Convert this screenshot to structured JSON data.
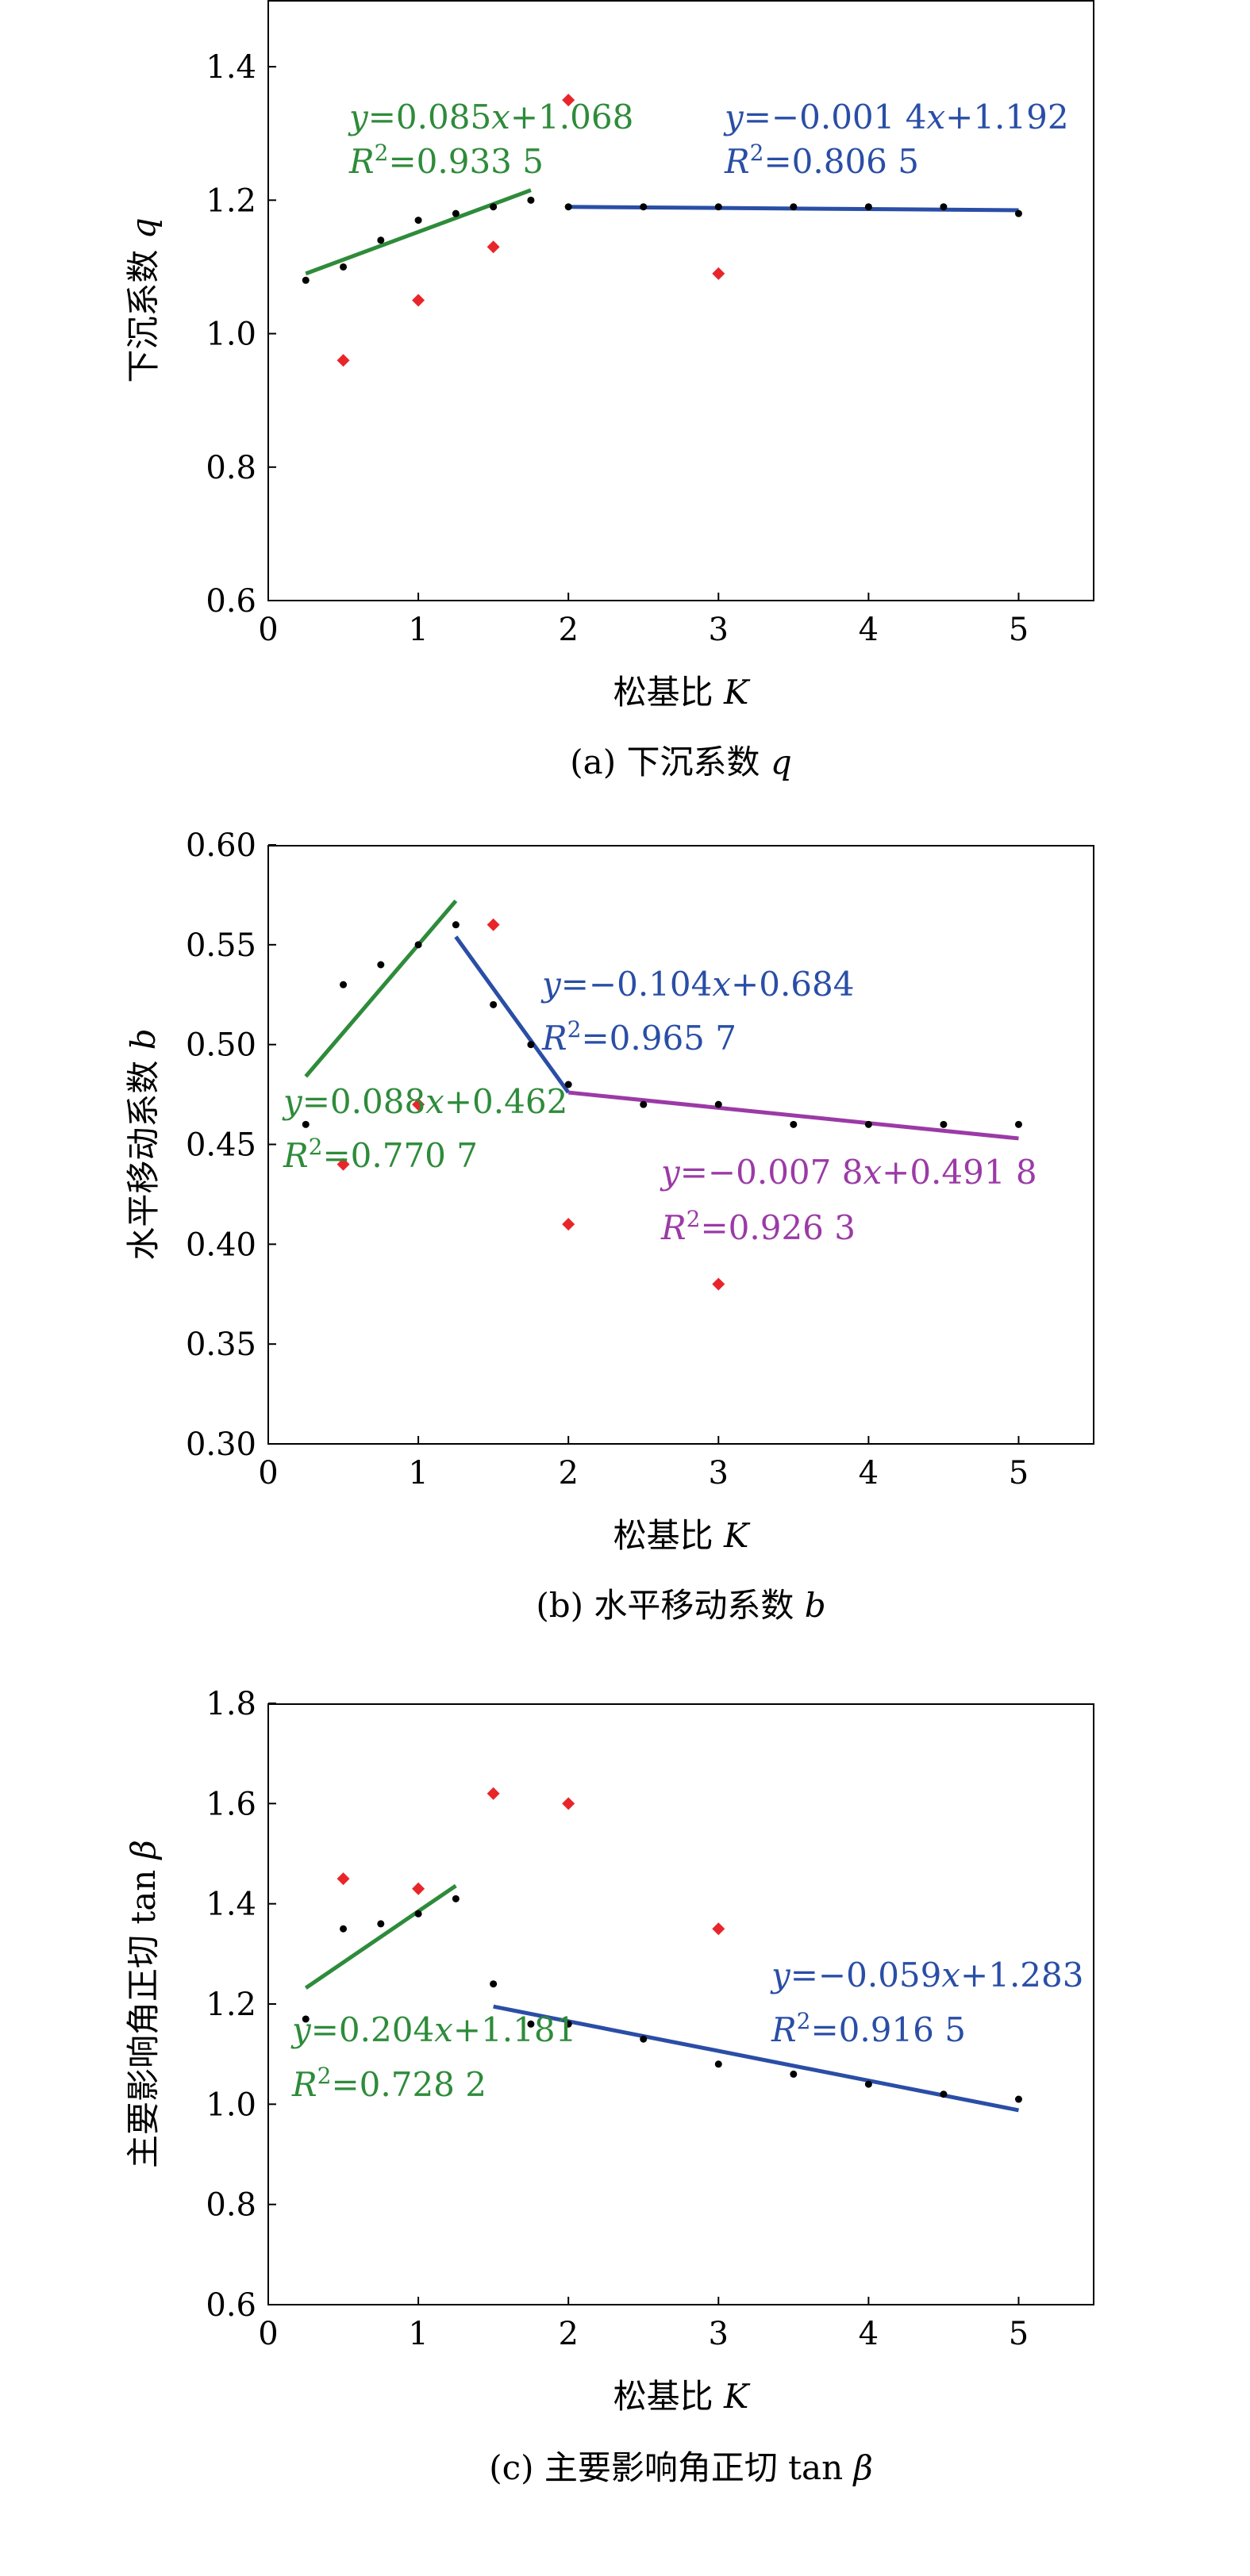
{
  "chart_data": [
    {
      "type": "scatter",
      "xlabel": "松基比",
      "xlabel_var": "K",
      "ylabel": "下沉系数",
      "ylabel_var": "q",
      "caption": "(a) 下沉系数",
      "caption_var": "q",
      "xlim": [
        0,
        5.5
      ],
      "ylim": [
        0.6,
        1.5
      ],
      "x_ticks": [
        0,
        1,
        2,
        3,
        4,
        5
      ],
      "y_ticks": [
        0.6,
        0.8,
        1.0,
        1.2,
        1.4
      ],
      "y_tick_labels": [
        "0.6",
        "0.8",
        "1.0",
        "1.2",
        "1.4"
      ],
      "series": [
        {
          "marker": "dot",
          "color": "#000000",
          "points": [
            [
              0.25,
              1.08
            ],
            [
              0.5,
              1.1
            ],
            [
              0.75,
              1.14
            ],
            [
              1.0,
              1.17
            ],
            [
              1.25,
              1.18
            ],
            [
              1.5,
              1.19
            ],
            [
              1.75,
              1.2
            ],
            [
              2.0,
              1.19
            ],
            [
              2.5,
              1.19
            ],
            [
              3.0,
              1.19
            ],
            [
              3.5,
              1.19
            ],
            [
              4.0,
              1.19
            ],
            [
              4.5,
              1.19
            ],
            [
              5.0,
              1.18
            ]
          ]
        },
        {
          "marker": "diamond",
          "color": "#e8262a",
          "points": [
            [
              0.5,
              0.96
            ],
            [
              1.0,
              1.05
            ],
            [
              1.5,
              1.13
            ],
            [
              2.0,
              1.35
            ],
            [
              3.0,
              1.09
            ]
          ]
        }
      ],
      "fits": [
        {
          "color": "#2e8b3a",
          "line": [
            [
              0.25,
              1.09
            ],
            [
              1.75,
              1.215
            ]
          ],
          "eq_y": "y",
          "eq_a": "=0.085",
          "eq_x": "x",
          "eq_b": "+1.068",
          "r2_r": "R",
          "r2_sup": "2",
          "r2_val": "=0.933 5"
        },
        {
          "color": "#2a4ea6",
          "line": [
            [
              2.0,
              1.19
            ],
            [
              5.0,
              1.185
            ]
          ],
          "eq_y": "y",
          "eq_a": "=−0.001 4",
          "eq_x": "x",
          "eq_b": "+1.192",
          "r2_r": "R",
          "r2_sup": "2",
          "r2_val": "=0.806 5"
        }
      ]
    },
    {
      "type": "scatter",
      "xlabel": "松基比",
      "xlabel_var": "K",
      "ylabel": "水平移动系数",
      "ylabel_var": "b",
      "caption": "(b) 水平移动系数",
      "caption_var": "b",
      "xlim": [
        0,
        5.5
      ],
      "ylim": [
        0.3,
        0.6
      ],
      "x_ticks": [
        0,
        1,
        2,
        3,
        4,
        5
      ],
      "y_ticks": [
        0.3,
        0.35,
        0.4,
        0.45,
        0.5,
        0.55,
        0.6
      ],
      "y_tick_labels": [
        "0.30",
        "0.35",
        "0.40",
        "0.45",
        "0.50",
        "0.55",
        "0.60"
      ],
      "series": [
        {
          "marker": "dot",
          "color": "#000000",
          "points": [
            [
              0.25,
              0.46
            ],
            [
              0.5,
              0.53
            ],
            [
              0.75,
              0.54
            ],
            [
              1.0,
              0.55
            ],
            [
              1.25,
              0.56
            ],
            [
              1.5,
              0.52
            ],
            [
              1.75,
              0.5
            ],
            [
              2.0,
              0.48
            ],
            [
              2.5,
              0.47
            ],
            [
              3.0,
              0.47
            ],
            [
              3.5,
              0.46
            ],
            [
              4.0,
              0.46
            ],
            [
              4.5,
              0.46
            ],
            [
              5.0,
              0.46
            ]
          ]
        },
        {
          "marker": "diamond",
          "color": "#e8262a",
          "points": [
            [
              0.5,
              0.44
            ],
            [
              1.0,
              0.47
            ],
            [
              1.5,
              0.56
            ],
            [
              2.0,
              0.41
            ],
            [
              3.0,
              0.38
            ]
          ]
        }
      ],
      "fits": [
        {
          "color": "#2e8b3a",
          "line": [
            [
              0.25,
              0.484
            ],
            [
              1.25,
              0.572
            ]
          ],
          "eq_y": "y",
          "eq_a": "=0.088",
          "eq_x": "x",
          "eq_b": "+0.462",
          "r2_r": "R",
          "r2_sup": "2",
          "r2_val": "=0.770 7"
        },
        {
          "color": "#2a4ea6",
          "line": [
            [
              1.25,
              0.554
            ],
            [
              2.0,
              0.476
            ]
          ],
          "eq_y": "y",
          "eq_a": "=−0.104",
          "eq_x": "x",
          "eq_b": "+0.684",
          "r2_r": "R",
          "r2_sup": "2",
          "r2_val": "=0.965 7"
        },
        {
          "color": "#9b3aa6",
          "line": [
            [
              2.0,
              0.476
            ],
            [
              5.0,
              0.453
            ]
          ],
          "eq_y": "y",
          "eq_a": "=−0.007 8",
          "eq_x": "x",
          "eq_b": "+0.491 8",
          "r2_r": "R",
          "r2_sup": "2",
          "r2_val": "=0.926 3"
        }
      ]
    },
    {
      "type": "scatter",
      "xlabel": "松基比",
      "xlabel_var": "K",
      "ylabel": "主要影响角正切 tan",
      "ylabel_var": "β",
      "caption": "(c) 主要影响角正切 tan",
      "caption_var": "β",
      "xlim": [
        0,
        5.5
      ],
      "ylim": [
        0.6,
        1.8
      ],
      "x_ticks": [
        0,
        1,
        2,
        3,
        4,
        5
      ],
      "y_ticks": [
        0.6,
        0.8,
        1.0,
        1.2,
        1.4,
        1.6,
        1.8
      ],
      "y_tick_labels": [
        "0.6",
        "0.8",
        "1.0",
        "1.2",
        "1.4",
        "1.6",
        "1.8"
      ],
      "series": [
        {
          "marker": "dot",
          "color": "#000000",
          "points": [
            [
              0.25,
              1.17
            ],
            [
              0.5,
              1.35
            ],
            [
              0.75,
              1.36
            ],
            [
              1.0,
              1.38
            ],
            [
              1.25,
              1.41
            ],
            [
              1.5,
              1.24
            ],
            [
              1.75,
              1.16
            ],
            [
              2.0,
              1.16
            ],
            [
              2.5,
              1.13
            ],
            [
              3.0,
              1.08
            ],
            [
              3.5,
              1.06
            ],
            [
              4.0,
              1.04
            ],
            [
              4.5,
              1.02
            ],
            [
              5.0,
              1.01
            ]
          ]
        },
        {
          "marker": "diamond",
          "color": "#e8262a",
          "points": [
            [
              0.5,
              1.45
            ],
            [
              1.0,
              1.43
            ],
            [
              1.5,
              1.62
            ],
            [
              2.0,
              1.6
            ],
            [
              3.0,
              1.35
            ]
          ]
        }
      ],
      "fits": [
        {
          "color": "#2e8b3a",
          "line": [
            [
              0.25,
              1.232
            ],
            [
              1.25,
              1.436
            ]
          ],
          "eq_y": "y",
          "eq_a": "=0.204",
          "eq_x": "x",
          "eq_b": "+1.181",
          "r2_r": "R",
          "r2_sup": "2",
          "r2_val": "=0.728 2"
        },
        {
          "color": "#2a4ea6",
          "line": [
            [
              1.5,
              1.195
            ],
            [
              5.0,
              0.988
            ]
          ],
          "eq_y": "y",
          "eq_a": "=−0.059",
          "eq_x": "x",
          "eq_b": "+1.283",
          "r2_r": "R",
          "r2_sup": "2",
          "r2_val": "=0.916 5"
        }
      ]
    }
  ]
}
